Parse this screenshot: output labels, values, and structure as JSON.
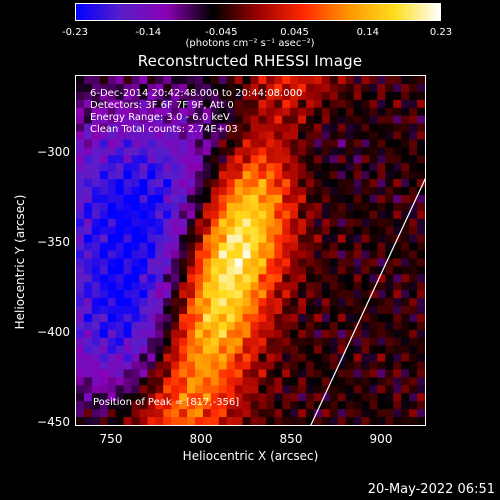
{
  "chart_data": {
    "type": "heatmap",
    "title": "Reconstructed RHESSI Image",
    "xlabel": "Heliocentric X (arcsec)",
    "ylabel": "Heliocentric Y (arcsec)",
    "xlim": [
      730,
      925
    ],
    "ylim": [
      -452,
      -257
    ],
    "xticks": [
      750,
      800,
      850,
      900
    ],
    "yticks": [
      -300,
      -350,
      -400,
      -450
    ],
    "colorbar": {
      "ticks": [
        "-0.23",
        "-0.14",
        "-0.045",
        "0.045",
        "0.14",
        "0.23"
      ],
      "range": [
        -0.23,
        0.23
      ],
      "units": "(photons cm⁻² s⁻¹ asec⁻²)"
    },
    "annotations": [
      "6-Dec-2014 20:42:48.000 to 20:44:08.000",
      "Detectors: 3F 6F 7F 9F, Att 0",
      "Energy Range: 3.0 - 6.0 keV",
      "Clean     Total counts: 2.74E+03"
    ],
    "peak_label": "Position of Peak = [817,-356]",
    "peak": [
      817,
      -356
    ],
    "limb_line": [
      [
        860,
        -452
      ],
      [
        925,
        -312
      ]
    ],
    "colors": [
      "#0000ff",
      "#5a1ec8",
      "#8a00b4",
      "#000000",
      "#9b0000",
      "#ff2800",
      "#ff9600",
      "#ffdc1e",
      "#ffffff"
    ]
  },
  "footer": {
    "date": "20-May-2022 06:51"
  }
}
